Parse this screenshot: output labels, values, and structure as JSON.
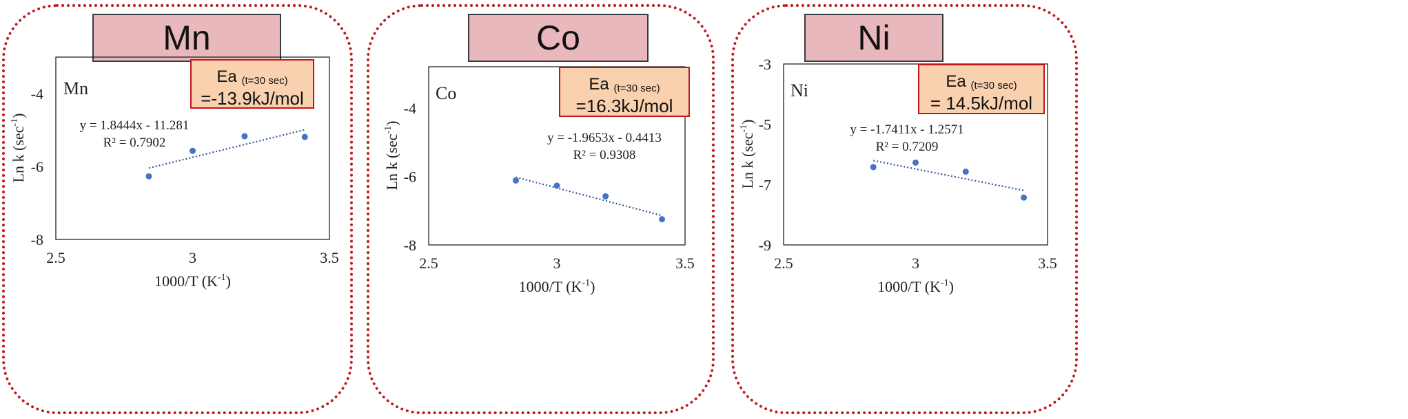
{
  "chart_data": [
    {
      "type": "scatter",
      "title": "Mn",
      "inner_label": "Mn",
      "xlabel": "1000/T (K",
      "xlabel_sup": "-1",
      "ylabel": "Ln k (sec",
      "ylabel_sup": "-1",
      "xlim": [
        2.5,
        3.5
      ],
      "xticks": [
        "2.5",
        "3",
        "3.5"
      ],
      "ylim": [
        -8,
        -3
      ],
      "yticks": [
        "-8",
        "-6",
        "-4"
      ],
      "ytick_values": [
        -8,
        -6,
        -4
      ],
      "points": [
        [
          2.84,
          -6.27
        ],
        [
          3.0,
          -5.57
        ],
        [
          3.19,
          -5.17
        ],
        [
          3.41,
          -5.19
        ]
      ],
      "trendline": {
        "slope": 1.8444,
        "intercept": -11.281,
        "x_range": [
          2.84,
          3.41
        ]
      },
      "equation": "y = 1.8444x - 11.281",
      "r2": "R² = 0.7902",
      "ea_label": "Ea",
      "ea_sub": "(t=30 sec)",
      "ea_value": "=-13.9kJ/mol"
    },
    {
      "type": "scatter",
      "title": "Co",
      "inner_label": "Co",
      "xlabel": "1000/T (K",
      "xlabel_sup": "-1",
      "ylabel": "Ln k (sec",
      "ylabel_sup": "-1",
      "xlim": [
        2.5,
        3.5
      ],
      "xticks": [
        "2.5",
        "3",
        "3.5"
      ],
      "ylim": [
        -8,
        -2.8
      ],
      "yticks": [
        "-8",
        "-6",
        "-4"
      ],
      "ytick_values": [
        -8,
        -6,
        -4
      ],
      "points": [
        [
          2.84,
          -6.12
        ],
        [
          3.0,
          -6.27
        ],
        [
          3.19,
          -6.58
        ],
        [
          3.41,
          -7.25
        ]
      ],
      "trendline": {
        "slope": -1.9653,
        "intercept": -0.4413,
        "x_range": [
          2.84,
          3.41
        ]
      },
      "equation": "y = -1.9653x - 0.4413",
      "r2": "R² = 0.9308",
      "ea_label": "Ea",
      "ea_sub": "(t=30 sec)",
      "ea_value": "=16.3kJ/mol"
    },
    {
      "type": "scatter",
      "title": "Ni",
      "inner_label": "Ni",
      "xlabel": "1000/T (K",
      "xlabel_sup": "-1",
      "ylabel": "Ln k (sec",
      "ylabel_sup": "-1",
      "xlim": [
        2.5,
        3.5
      ],
      "xticks": [
        "2.5",
        "3",
        "3.5"
      ],
      "ylim": [
        -9,
        -3
      ],
      "yticks": [
        "-9",
        "-7",
        "-5",
        "-3"
      ],
      "ytick_values": [
        -9,
        -7,
        -5,
        -3
      ],
      "points": [
        [
          2.84,
          -6.42
        ],
        [
          3.0,
          -6.27
        ],
        [
          3.19,
          -6.57
        ],
        [
          3.41,
          -7.43
        ]
      ],
      "trendline": {
        "slope": -1.7411,
        "intercept": -1.2571,
        "x_range": [
          2.84,
          3.41
        ]
      },
      "equation": "y = -1.7411x - 1.2571",
      "r2": "R² = 0.7209",
      "ea_label": "Ea",
      "ea_sub": "(t=30 sec)",
      "ea_value": "= 14.5kJ/mol"
    }
  ],
  "colors": {
    "point": "#4472c4",
    "trend": "#2e5597",
    "panel_border": "#c0161b",
    "header_fill": "#e8b8bc",
    "ea_fill": "#f9d1ae"
  }
}
